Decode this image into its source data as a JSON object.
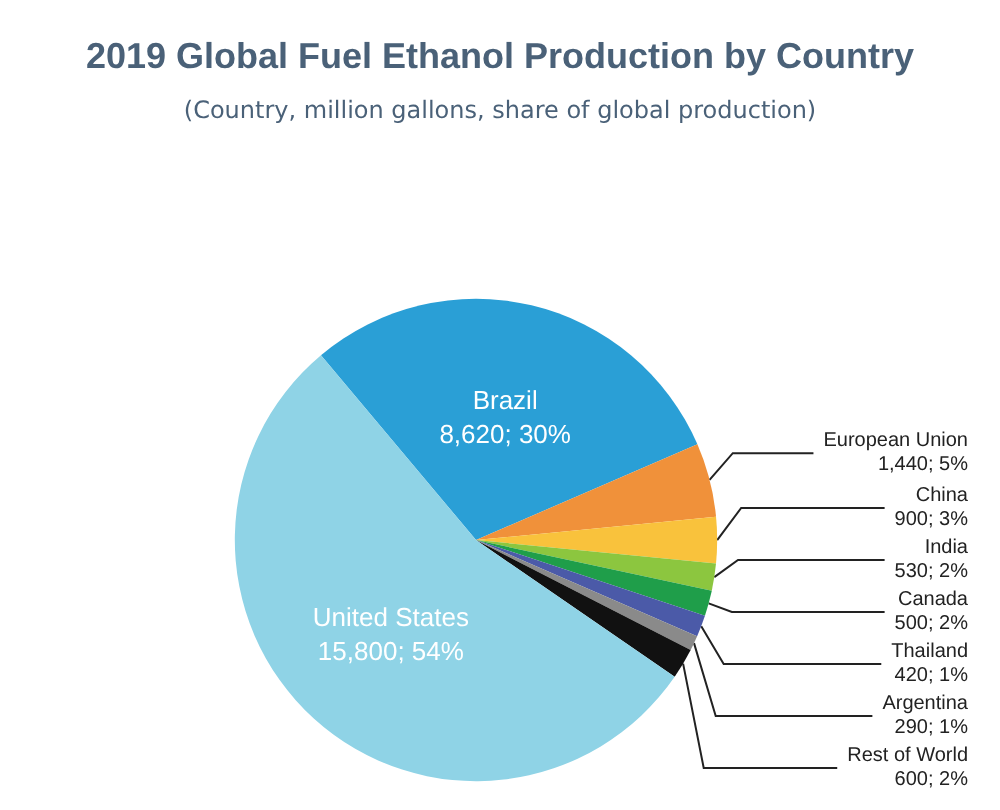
{
  "chart_data": {
    "type": "pie",
    "title": "2019 Global Fuel Ethanol Production by Country",
    "subtitle": "(Country, million gallons, share of global production)",
    "categories": [
      "Brazil",
      "European Union",
      "China",
      "India",
      "Canada",
      "Thailand",
      "Argentina",
      "Rest of World",
      "United States"
    ],
    "values": [
      8620,
      1440,
      900,
      530,
      500,
      420,
      290,
      600,
      15800
    ],
    "value_labels": [
      "8,620; 30%",
      "1,440; 5%",
      "900; 3%",
      "530; 2%",
      "500; 2%",
      "420; 1%",
      "290; 1%",
      "600; 2%",
      "15,800; 54%"
    ],
    "colors": [
      "#2a9fd6",
      "#f0913a",
      "#f9c23c",
      "#8cc63f",
      "#1f9e4a",
      "#4b5aa8",
      "#8a8a8a",
      "#111111",
      "#8fd3e6"
    ]
  }
}
